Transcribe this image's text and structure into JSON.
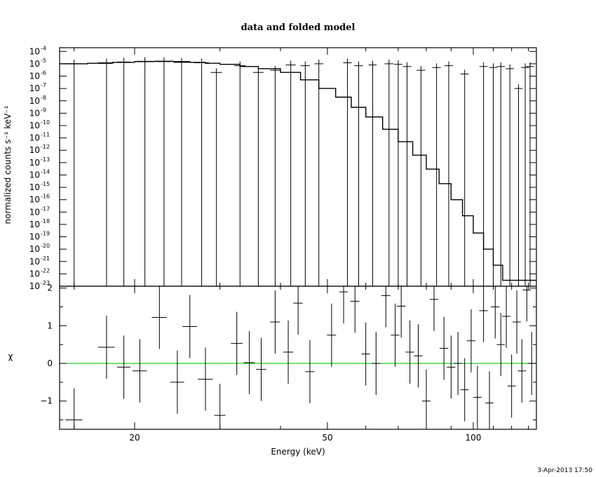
{
  "timestamp": "3-Apr-2013 17:50",
  "chart_data": [
    {
      "type": "line",
      "title": "data and folded model",
      "xlabel": "",
      "ylabel": "normalized counts s⁻¹ keV⁻¹",
      "xscale": "log",
      "yscale": "log",
      "xlim": [
        14,
        135
      ],
      "ylim": [
        1e-23,
        0.0002
      ],
      "ytick_exponents": [
        -23,
        -22,
        -21,
        -20,
        -19,
        -18,
        -17,
        -16,
        -15,
        -14,
        -13,
        -12,
        -11,
        -10,
        -9,
        -8,
        -7,
        -6,
        -5,
        -4
      ],
      "data_points": [
        {
          "x": 15.0,
          "xerr": 0.6,
          "y": 1e-05
        },
        {
          "x": 17.5,
          "xerr": 0.7,
          "y": 1.2e-05
        },
        {
          "x": 19.0,
          "xerr": 0.6,
          "y": 1.4e-05
        },
        {
          "x": 21.0,
          "xerr": 0.8,
          "y": 1.6e-05
        },
        {
          "x": 23.0,
          "xerr": 0.8,
          "y": 1.5e-05
        },
        {
          "x": 25.0,
          "xerr": 0.9,
          "y": 1.3e-05
        },
        {
          "x": 27.5,
          "xerr": 1.0,
          "y": 1.2e-05
        },
        {
          "x": 29.5,
          "xerr": 0.8,
          "y": 2e-06
        },
        {
          "x": 33.0,
          "xerr": 0.9,
          "y": 7e-06
        },
        {
          "x": 36.0,
          "xerr": 0.9,
          "y": 2e-06
        },
        {
          "x": 39.0,
          "xerr": 0.9,
          "y": 3e-06
        },
        {
          "x": 42.0,
          "xerr": 1.0,
          "y": 8e-06
        },
        {
          "x": 45.0,
          "xerr": 1.0,
          "y": 7e-06
        },
        {
          "x": 48.0,
          "xerr": 1.0,
          "y": 1e-05
        },
        {
          "x": 55.0,
          "xerr": 1.1,
          "y": 1.2e-05
        },
        {
          "x": 58.0,
          "xerr": 1.2,
          "y": 7e-06
        },
        {
          "x": 62.0,
          "xerr": 1.2,
          "y": 8e-06
        },
        {
          "x": 67.0,
          "xerr": 1.4,
          "y": 1e-05
        },
        {
          "x": 70.0,
          "xerr": 1.4,
          "y": 9e-06
        },
        {
          "x": 73.0,
          "xerr": 1.5,
          "y": 6e-06
        },
        {
          "x": 78.0,
          "xerr": 1.6,
          "y": 3e-06
        },
        {
          "x": 84.0,
          "xerr": 1.7,
          "y": 5e-06
        },
        {
          "x": 89.0,
          "xerr": 1.8,
          "y": 7e-06
        },
        {
          "x": 96.0,
          "xerr": 1.9,
          "y": 1.5e-06
        },
        {
          "x": 105.0,
          "xerr": 2.0,
          "y": 6e-06
        },
        {
          "x": 110.0,
          "xerr": 2.1,
          "y": 5e-06
        },
        {
          "x": 114.0,
          "xerr": 2.2,
          "y": 6e-06
        },
        {
          "x": 119.0,
          "xerr": 2.3,
          "y": 4e-06
        },
        {
          "x": 124.0,
          "xerr": 2.4,
          "y": 1e-07
        },
        {
          "x": 128.0,
          "xerr": 2.5,
          "y": 5e-06
        },
        {
          "x": 131.0,
          "xerr": 2.5,
          "y": 6e-06
        }
      ],
      "model": [
        {
          "x": 14.0,
          "y": 1e-05
        },
        {
          "x": 16.0,
          "y": 1.1e-05
        },
        {
          "x": 18.0,
          "y": 1.3e-05
        },
        {
          "x": 20.0,
          "y": 1.5e-05
        },
        {
          "x": 22.0,
          "y": 1.6e-05
        },
        {
          "x": 24.0,
          "y": 1.5e-05
        },
        {
          "x": 26.0,
          "y": 1.3e-05
        },
        {
          "x": 28.0,
          "y": 1.1e-05
        },
        {
          "x": 30.0,
          "y": 9e-06
        },
        {
          "x": 33.0,
          "y": 6e-06
        },
        {
          "x": 36.0,
          "y": 4e-06
        },
        {
          "x": 40.0,
          "y": 2e-06
        },
        {
          "x": 44.0,
          "y": 5e-07
        },
        {
          "x": 48.0,
          "y": 1e-07
        },
        {
          "x": 52.0,
          "y": 2e-08
        },
        {
          "x": 56.0,
          "y": 3e-09
        },
        {
          "x": 60.0,
          "y": 5e-10
        },
        {
          "x": 65.0,
          "y": 5e-11
        },
        {
          "x": 70.0,
          "y": 5e-12
        },
        {
          "x": 75.0,
          "y": 4e-13
        },
        {
          "x": 80.0,
          "y": 3e-14
        },
        {
          "x": 85.0,
          "y": 2e-15
        },
        {
          "x": 90.0,
          "y": 1e-16
        },
        {
          "x": 95.0,
          "y": 5e-18
        },
        {
          "x": 100.0,
          "y": 2e-19
        },
        {
          "x": 105.0,
          "y": 1e-20
        },
        {
          "x": 110.0,
          "y": 5e-22
        },
        {
          "x": 115.0,
          "y": 3e-23
        },
        {
          "x": 135.0,
          "y": 1e-23
        }
      ]
    },
    {
      "type": "scatter",
      "title": "",
      "xlabel": "Energy (keV)",
      "ylabel": "χ",
      "xscale": "log",
      "xlim": [
        14,
        135
      ],
      "ylim": [
        -1.75,
        2.05
      ],
      "xticks": [
        20,
        50,
        100
      ],
      "yticks": [
        -1,
        0,
        1,
        2
      ],
      "reference_line": {
        "y": 0,
        "color": "#00cc00"
      },
      "residuals": [
        {
          "x": 15.0,
          "xerr": 0.6,
          "y": -1.5
        },
        {
          "x": 17.5,
          "xerr": 0.7,
          "y": 0.43
        },
        {
          "x": 19.0,
          "xerr": 0.6,
          "y": -0.1
        },
        {
          "x": 20.5,
          "xerr": 0.7,
          "y": -0.2
        },
        {
          "x": 22.5,
          "xerr": 0.8,
          "y": 1.22
        },
        {
          "x": 24.5,
          "xerr": 0.8,
          "y": -0.5
        },
        {
          "x": 26.0,
          "xerr": 0.9,
          "y": 0.98
        },
        {
          "x": 28.0,
          "xerr": 1.0,
          "y": -0.42
        },
        {
          "x": 30.0,
          "xerr": 0.8,
          "y": -1.38
        },
        {
          "x": 32.5,
          "xerr": 0.9,
          "y": 0.53
        },
        {
          "x": 34.5,
          "xerr": 0.9,
          "y": 0.02
        },
        {
          "x": 36.5,
          "xerr": 0.9,
          "y": -0.16
        },
        {
          "x": 39.0,
          "xerr": 0.9,
          "y": 1.1
        },
        {
          "x": 41.5,
          "xerr": 1.0,
          "y": 0.3
        },
        {
          "x": 43.5,
          "xerr": 1.0,
          "y": 1.6
        },
        {
          "x": 46.0,
          "xerr": 1.0,
          "y": -0.22
        },
        {
          "x": 51.0,
          "xerr": 1.1,
          "y": 0.75
        },
        {
          "x": 54.0,
          "xerr": 1.1,
          "y": 1.9
        },
        {
          "x": 57.0,
          "xerr": 1.2,
          "y": 1.65
        },
        {
          "x": 60.0,
          "xerr": 1.2,
          "y": 0.25
        },
        {
          "x": 63.0,
          "xerr": 1.3,
          "y": 0.0
        },
        {
          "x": 66.0,
          "xerr": 1.4,
          "y": 1.8
        },
        {
          "x": 69.0,
          "xerr": 1.4,
          "y": 0.75
        },
        {
          "x": 71.0,
          "xerr": 1.5,
          "y": 1.52
        },
        {
          "x": 74.0,
          "xerr": 1.5,
          "y": 0.3
        },
        {
          "x": 77.0,
          "xerr": 1.6,
          "y": 0.2
        },
        {
          "x": 80.0,
          "xerr": 1.6,
          "y": -1.0
        },
        {
          "x": 83.0,
          "xerr": 1.7,
          "y": 1.7
        },
        {
          "x": 87.0,
          "xerr": 1.8,
          "y": 0.4
        },
        {
          "x": 90.0,
          "xerr": 1.8,
          "y": -0.1
        },
        {
          "x": 93.0,
          "xerr": 1.9,
          "y": 0.0
        },
        {
          "x": 96.0,
          "xerr": 1.9,
          "y": -0.7
        },
        {
          "x": 99.0,
          "xerr": 2.0,
          "y": 0.6
        },
        {
          "x": 102.0,
          "xerr": 2.0,
          "y": -0.9
        },
        {
          "x": 105.0,
          "xerr": 2.1,
          "y": 1.4
        },
        {
          "x": 108.0,
          "xerr": 2.1,
          "y": -1.05
        },
        {
          "x": 111.0,
          "xerr": 2.2,
          "y": 1.5
        },
        {
          "x": 114.0,
          "xerr": 2.2,
          "y": 0.5
        },
        {
          "x": 117.0,
          "xerr": 2.3,
          "y": 1.25
        },
        {
          "x": 120.0,
          "xerr": 2.3,
          "y": -0.6
        },
        {
          "x": 123.0,
          "xerr": 2.4,
          "y": 1.1
        },
        {
          "x": 126.0,
          "xerr": 2.4,
          "y": -0.2
        },
        {
          "x": 129.0,
          "xerr": 2.5,
          "y": 1.95
        },
        {
          "x": 132.0,
          "xerr": 2.5,
          "y": 0.0
        }
      ]
    }
  ]
}
